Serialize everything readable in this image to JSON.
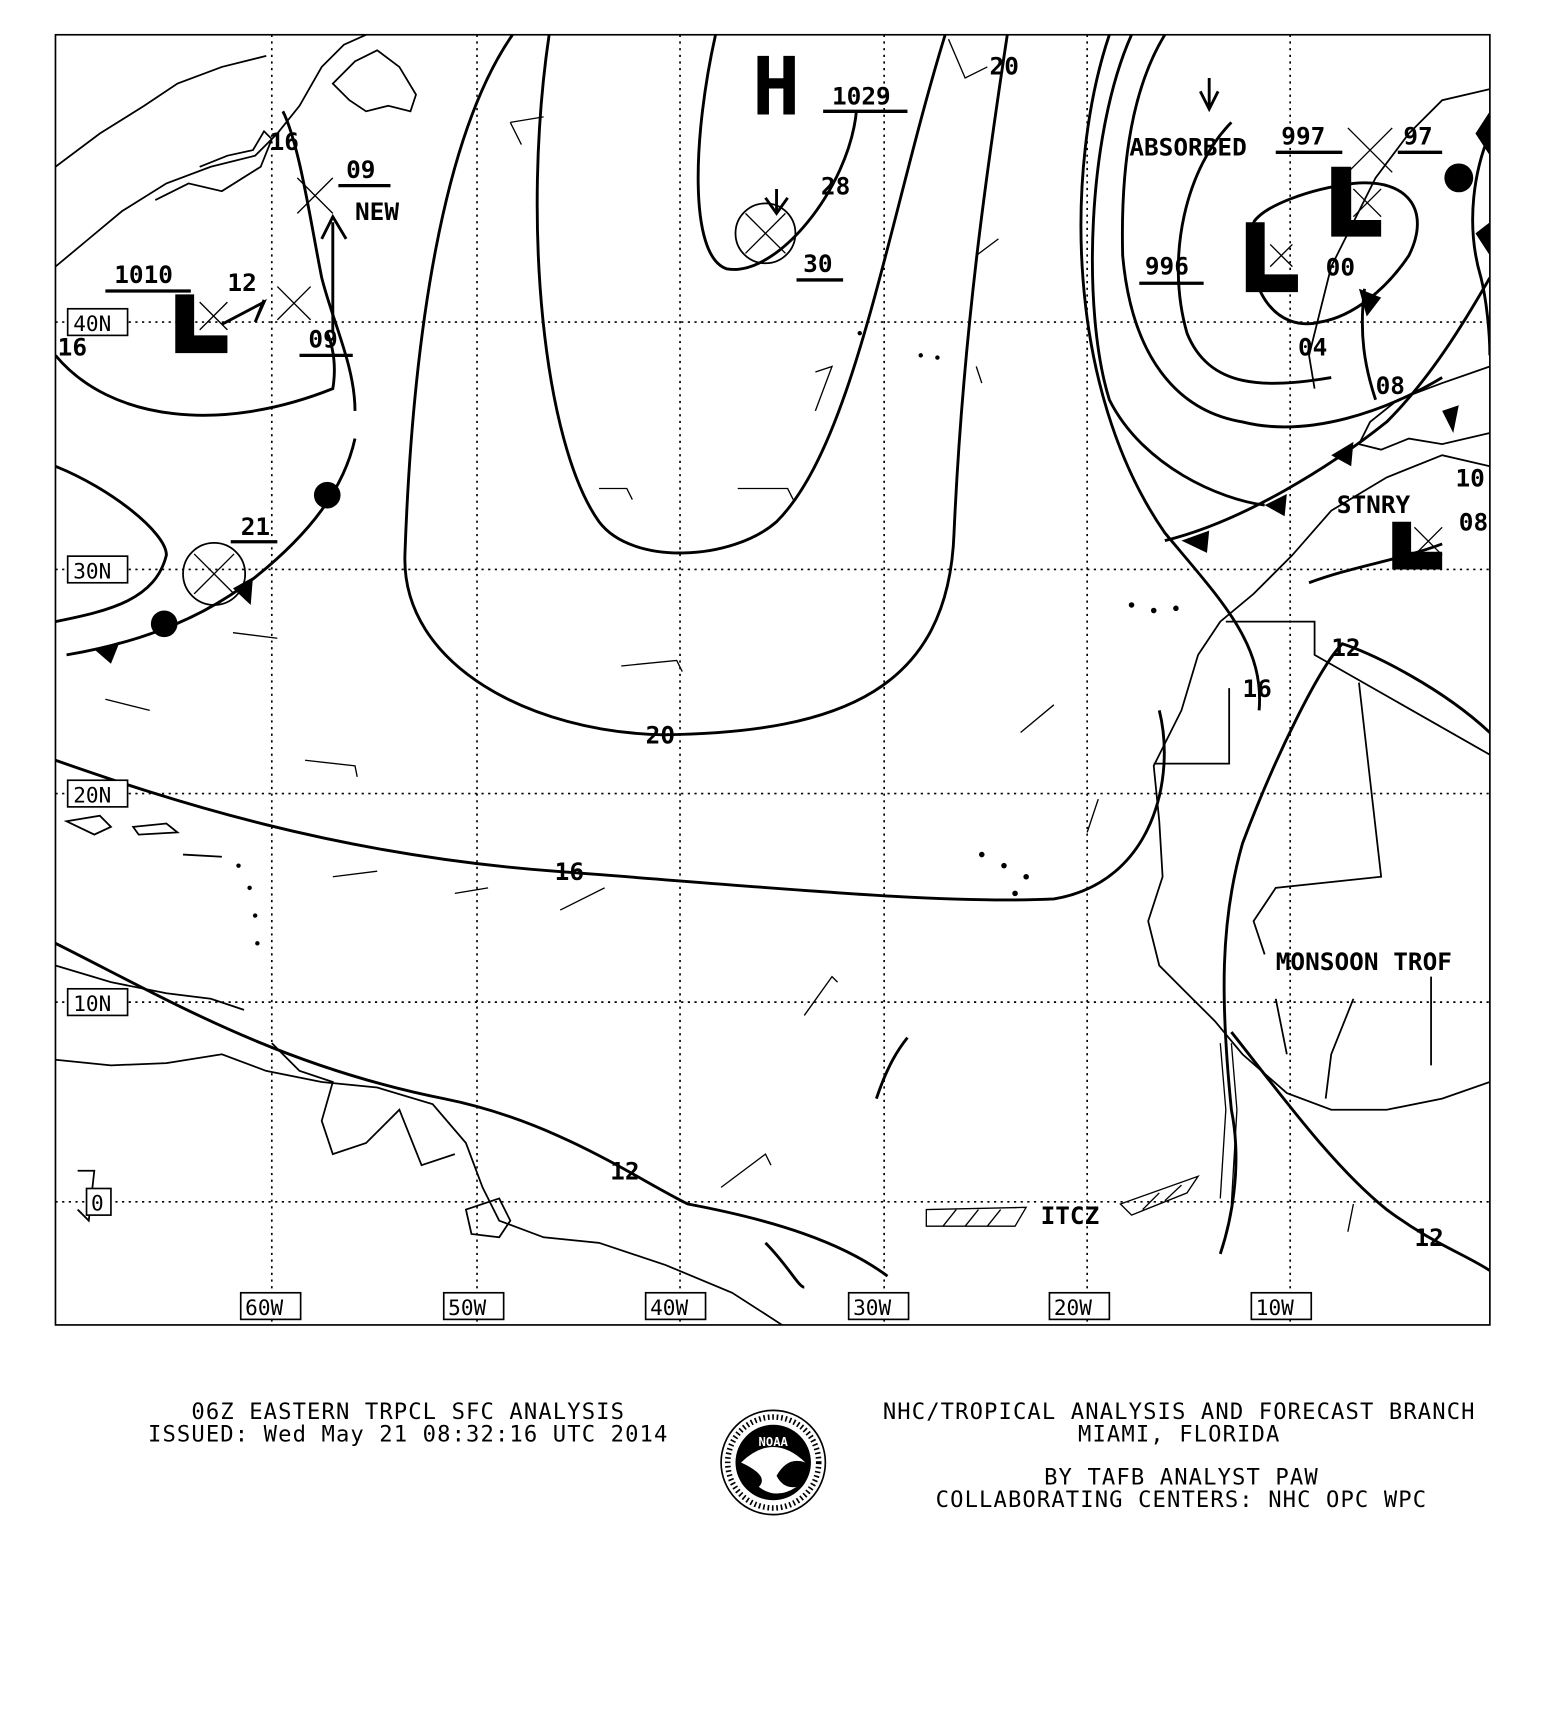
{
  "map": {
    "latitude_labels": [
      "40N",
      "30N",
      "20N",
      "10N",
      "0"
    ],
    "longitude_labels": [
      "60W",
      "50W",
      "40W",
      "30W",
      "20W",
      "10W"
    ],
    "pressure_centers": [
      {
        "symbol": "H",
        "value": "1029"
      },
      {
        "symbol": "L",
        "value": "1010"
      },
      {
        "symbol": "L",
        "value": "996"
      },
      {
        "symbol": "L",
        "value": "997"
      },
      {
        "symbol": "L",
        "value": "97"
      }
    ],
    "isobar_labels": [
      "28",
      "30",
      "20",
      "20",
      "16",
      "12",
      "12",
      "12",
      "16",
      "12",
      "09",
      "09",
      "16",
      "16",
      "21",
      "00",
      "04",
      "08",
      "10",
      "08"
    ],
    "annotations": {
      "new": "NEW",
      "absorbed": "ABSORBED",
      "stationary": "STNRY",
      "itcz": "ITCZ",
      "monsoon": "MONSOON TROF"
    }
  },
  "footer": {
    "title": "06Z EASTERN TRPCL SFC ANALYSIS",
    "issued": "ISSUED: Wed May 21 08:32:16 UTC 2014",
    "agency": "NHC/TROPICAL ANALYSIS AND FORECAST BRANCH",
    "location": "MIAMI,  FLORIDA",
    "analyst": "BY TAFB ANALYST  PAW",
    "collaborating": "COLLABORATING CENTERS: NHC OPC WPC"
  },
  "logo": {
    "text": "NOAA",
    "ring_text": "NATIONAL OCEANIC AND ATMOSPHERIC ADMINISTRATION U.S. DEPARTMENT OF COMMERCE"
  }
}
